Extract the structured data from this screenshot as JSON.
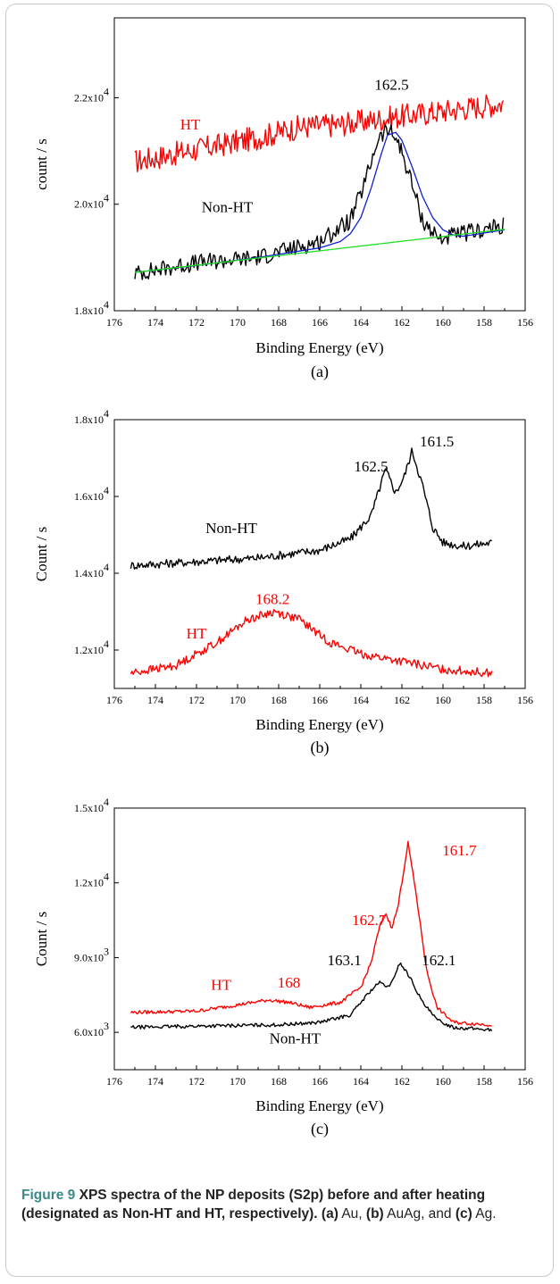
{
  "chart_data": [
    {
      "type": "line",
      "panel_label": "(a)",
      "xlabel": "Binding Energy (eV)",
      "ylabel": "count / s",
      "xlim": [
        176,
        156
      ],
      "ylim": [
        18000,
        23500
      ],
      "x_ticks": [
        176,
        174,
        172,
        170,
        168,
        166,
        164,
        162,
        160,
        158,
        156
      ],
      "y_ticks": [
        {
          "value": 18000,
          "mantissa": "1.8x10",
          "exp": "4"
        },
        {
          "value": 20000,
          "mantissa": "2.0x10",
          "exp": "4"
        },
        {
          "value": 22000,
          "mantissa": "2.2x10",
          "exp": "4"
        }
      ],
      "series": [
        {
          "name": "HT",
          "color": "#ff0000",
          "noise": 230,
          "x": [
            175,
            173,
            171,
            169,
            167,
            165,
            163,
            161,
            159,
            157
          ],
          "y": [
            20800,
            20950,
            21100,
            21250,
            21450,
            21500,
            21600,
            21700,
            21800,
            21900
          ]
        },
        {
          "name": "Non-HT",
          "color": "#000000",
          "noise": 160,
          "x": [
            175,
            172,
            169,
            166,
            164.5,
            163.8,
            163.2,
            162.7,
            162.2,
            161.6,
            161,
            160.2,
            159,
            157
          ],
          "y": [
            18700,
            18900,
            19000,
            19300,
            19700,
            20400,
            21200,
            21400,
            21200,
            20500,
            19700,
            19350,
            19450,
            19600
          ]
        },
        {
          "name": "fit",
          "color": "#1020d0",
          "noise": 0,
          "x": [
            175,
            172,
            169,
            166,
            165,
            164.5,
            164,
            163.5,
            163,
            162.7,
            162.3,
            162,
            161.5,
            161,
            160.5,
            160,
            159.5,
            159,
            157
          ],
          "y": [
            18720,
            18850,
            19000,
            19180,
            19300,
            19450,
            19750,
            20300,
            20950,
            21300,
            21350,
            21200,
            20700,
            20150,
            19750,
            19520,
            19420,
            19400,
            19520
          ]
        },
        {
          "name": "baseline",
          "color": "#22dd22",
          "noise": 0,
          "x": [
            175,
            157
          ],
          "y": [
            18720,
            19530
          ]
        }
      ],
      "annotations": [
        {
          "text": "162.5",
          "x": 162.5,
          "y": 22150,
          "color": "#000000"
        },
        {
          "text": "HT",
          "x": 172.3,
          "y": 21400,
          "color": "#ff0000"
        },
        {
          "text": "Non-HT",
          "x": 170.5,
          "y": 19850,
          "color": "#000000"
        }
      ]
    },
    {
      "type": "line",
      "panel_label": "(b)",
      "xlabel": "Binding Energy (eV)",
      "ylabel": "Count / s",
      "xlim": [
        176,
        156
      ],
      "ylim": [
        11000,
        18000
      ],
      "x_ticks": [
        176,
        174,
        172,
        170,
        168,
        166,
        164,
        162,
        160,
        158,
        156
      ],
      "y_ticks": [
        {
          "value": 12000,
          "mantissa": "1.2x10",
          "exp": "4"
        },
        {
          "value": 14000,
          "mantissa": "1.4x10",
          "exp": "4"
        },
        {
          "value": 16000,
          "mantissa": "1.6x10",
          "exp": "4"
        },
        {
          "value": 18000,
          "mantissa": "1.8x10",
          "exp": "4"
        }
      ],
      "series": [
        {
          "name": "Non-HT",
          "color": "#000000",
          "noise": 110,
          "x": [
            175.2,
            172,
            169,
            166,
            164.5,
            163.5,
            162.8,
            162.3,
            161.9,
            161.5,
            161,
            160.5,
            160,
            159,
            157.6
          ],
          "y": [
            14200,
            14300,
            14400,
            14600,
            14900,
            15500,
            16700,
            16100,
            16500,
            17200,
            16300,
            15200,
            14800,
            14700,
            14800
          ]
        },
        {
          "name": "HT",
          "color": "#ff0000",
          "noise": 110,
          "x": [
            175.2,
            173,
            171,
            169.5,
            168.2,
            167,
            165.5,
            164,
            162,
            160,
            157.6
          ],
          "y": [
            11400,
            11600,
            12200,
            12800,
            13000,
            12800,
            12200,
            11900,
            11700,
            11500,
            11400
          ]
        }
      ],
      "annotations": [
        {
          "text": "161.5",
          "x": 160.3,
          "y": 17300,
          "color": "#000000"
        },
        {
          "text": "162.5",
          "x": 163.5,
          "y": 16650,
          "color": "#000000"
        },
        {
          "text": "Non-HT",
          "x": 170.3,
          "y": 15050,
          "color": "#000000"
        },
        {
          "text": "168.2",
          "x": 168.3,
          "y": 13200,
          "color": "#ff0000"
        },
        {
          "text": "HT",
          "x": 172,
          "y": 12300,
          "color": "#ff0000"
        }
      ]
    },
    {
      "type": "line",
      "panel_label": "(c)",
      "xlabel": "Binding Energy (eV)",
      "ylabel": "Count / s",
      "xlim": [
        176,
        156
      ],
      "ylim": [
        4500,
        15000
      ],
      "x_ticks": [
        176,
        174,
        172,
        170,
        168,
        166,
        164,
        162,
        160,
        158,
        156
      ],
      "y_ticks": [
        {
          "value": 6000,
          "mantissa": "6.0x10",
          "exp": "3"
        },
        {
          "value": 9000,
          "mantissa": "9.0x10",
          "exp": "3"
        },
        {
          "value": 12000,
          "mantissa": "1.2x10",
          "exp": "4"
        },
        {
          "value": 15000,
          "mantissa": "1.5x10",
          "exp": "4"
        }
      ],
      "series": [
        {
          "name": "HT",
          "color": "#ff0000",
          "noise": 70,
          "x": [
            175.2,
            172,
            170,
            168.5,
            167.5,
            166.5,
            165,
            164,
            163.5,
            163.1,
            162.8,
            162.5,
            162.2,
            161.7,
            161.3,
            160.8,
            160.3,
            159.5,
            157.6
          ],
          "y": [
            6800,
            6850,
            7100,
            7300,
            7200,
            7000,
            7200,
            7800,
            8800,
            10200,
            10800,
            10200,
            11000,
            13600,
            11500,
            8500,
            7000,
            6400,
            6300
          ]
        },
        {
          "name": "Non-HT",
          "color": "#000000",
          "noise": 70,
          "x": [
            175.2,
            172,
            168,
            166,
            164.5,
            163.6,
            163.1,
            162.6,
            162.1,
            161.6,
            161,
            160.3,
            159.5,
            157.6
          ],
          "y": [
            6200,
            6250,
            6300,
            6400,
            6700,
            7600,
            8000,
            7800,
            8800,
            8200,
            7200,
            6500,
            6200,
            6100
          ]
        }
      ],
      "annotations": [
        {
          "text": "161.7",
          "x": 159.2,
          "y": 13100,
          "color": "#ff0000"
        },
        {
          "text": "162.7",
          "x": 163.6,
          "y": 10300,
          "color": "#ff0000"
        },
        {
          "text": "163.1",
          "x": 164.8,
          "y": 8700,
          "color": "#000000"
        },
        {
          "text": "162.1",
          "x": 160.2,
          "y": 8700,
          "color": "#000000"
        },
        {
          "text": "HT",
          "x": 170.8,
          "y": 7700,
          "color": "#ff0000"
        },
        {
          "text": "168",
          "x": 167.5,
          "y": 7800,
          "color": "#ff0000"
        },
        {
          "text": "Non-HT",
          "x": 167.2,
          "y": 5550,
          "color": "#000000"
        }
      ]
    }
  ],
  "caption": {
    "label": "Figure 9",
    "bold_text": " XPS spectra of the NP deposits (S2p) before and after heating (designated as Non-HT and HT, respectively).",
    "part_a_label": "(a)",
    "part_a_text": " Au,",
    "part_b_label": "(b)",
    "part_b_text": " AuAg, and ",
    "part_c_label": "(c)",
    "part_c_text": " Ag."
  }
}
